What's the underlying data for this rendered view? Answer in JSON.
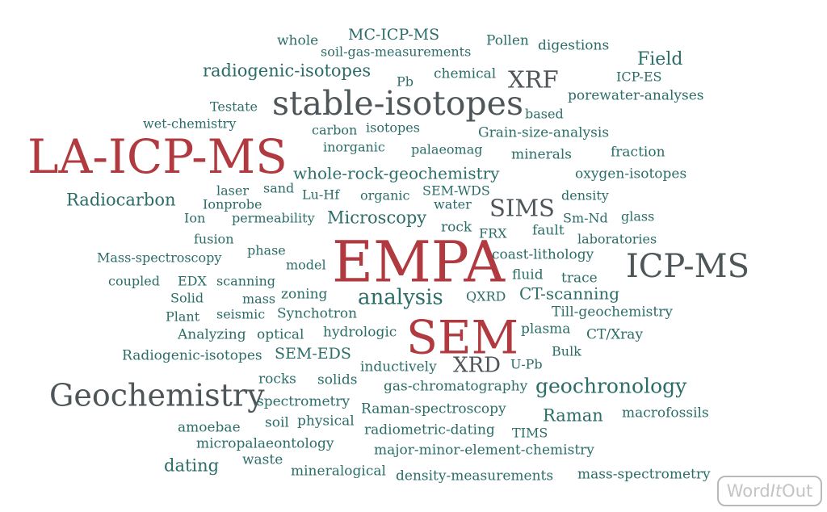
{
  "colors": {
    "teal": "#2c6d69",
    "red": "#b03a3f",
    "dark_slate": "#4e5659",
    "logo_gray": "#c4c4c4",
    "background": "#ffffff"
  },
  "word_cloud": {
    "words": [
      {
        "text": "whole"
      },
      {
        "text": "MC-ICP-MS"
      },
      {
        "text": "Pollen"
      },
      {
        "text": "digestions"
      },
      {
        "text": "soil-gas-measurements"
      },
      {
        "text": "Field"
      },
      {
        "text": "radiogenic-isotopes"
      },
      {
        "text": "Pb"
      },
      {
        "text": "chemical"
      },
      {
        "text": "XRF"
      },
      {
        "text": "ICP-ES"
      },
      {
        "text": "stable-isotopes"
      },
      {
        "text": "porewater-analyses"
      },
      {
        "text": "Testate"
      },
      {
        "text": "based"
      },
      {
        "text": "wet-chemistry"
      },
      {
        "text": "carbon"
      },
      {
        "text": "isotopes"
      },
      {
        "text": "Grain-size-analysis"
      },
      {
        "text": "LA-ICP-MS"
      },
      {
        "text": "inorganic"
      },
      {
        "text": "palaeomag"
      },
      {
        "text": "fraction"
      },
      {
        "text": "minerals"
      },
      {
        "text": "whole-rock-geochemistry"
      },
      {
        "text": "oxygen-isotopes"
      },
      {
        "text": "laser"
      },
      {
        "text": "sand"
      },
      {
        "text": "Lu-Hf"
      },
      {
        "text": "organic"
      },
      {
        "text": "SEM-WDS"
      },
      {
        "text": "density"
      },
      {
        "text": "Radiocarbon"
      },
      {
        "text": "Ionprobe"
      },
      {
        "text": "water"
      },
      {
        "text": "SIMS"
      },
      {
        "text": "Ion"
      },
      {
        "text": "permeability"
      },
      {
        "text": "Microscopy"
      },
      {
        "text": "Sm-Nd"
      },
      {
        "text": "glass"
      },
      {
        "text": "rock"
      },
      {
        "text": "fault"
      },
      {
        "text": "fusion"
      },
      {
        "text": "FRX"
      },
      {
        "text": "laboratories"
      },
      {
        "text": "phase"
      },
      {
        "text": "EMPA"
      },
      {
        "text": "Mass-spectroscopy"
      },
      {
        "text": "coast-lithology"
      },
      {
        "text": "model"
      },
      {
        "text": "ICP-MS"
      },
      {
        "text": "fluid"
      },
      {
        "text": "coupled"
      },
      {
        "text": "EDX"
      },
      {
        "text": "scanning"
      },
      {
        "text": "trace"
      },
      {
        "text": "zoning"
      },
      {
        "text": "CT-scanning"
      },
      {
        "text": "Solid"
      },
      {
        "text": "mass"
      },
      {
        "text": "analysis"
      },
      {
        "text": "QXRD"
      },
      {
        "text": "Plant"
      },
      {
        "text": "seismic"
      },
      {
        "text": "Synchotron"
      },
      {
        "text": "Till-geochemistry"
      },
      {
        "text": "plasma"
      },
      {
        "text": "Analyzing"
      },
      {
        "text": "optical"
      },
      {
        "text": "hydrologic"
      },
      {
        "text": "SEM"
      },
      {
        "text": "CT/Xray"
      },
      {
        "text": "Bulk"
      },
      {
        "text": "Radiogenic-isotopes"
      },
      {
        "text": "SEM-EDS"
      },
      {
        "text": "U-Pb"
      },
      {
        "text": "inductively"
      },
      {
        "text": "XRD"
      },
      {
        "text": "rocks"
      },
      {
        "text": "solids"
      },
      {
        "text": "geochronology"
      },
      {
        "text": "gas-chromatography"
      },
      {
        "text": "Geochemistry"
      },
      {
        "text": "spectrometry"
      },
      {
        "text": "Raman-spectroscopy"
      },
      {
        "text": "Raman"
      },
      {
        "text": "macrofossils"
      },
      {
        "text": "amoebae"
      },
      {
        "text": "soil"
      },
      {
        "text": "physical"
      },
      {
        "text": "radiometric-dating"
      },
      {
        "text": "TIMS"
      },
      {
        "text": "micropalaeontology"
      },
      {
        "text": "major-minor-element-chemistry"
      },
      {
        "text": "dating"
      },
      {
        "text": "waste"
      },
      {
        "text": "mineralogical"
      },
      {
        "text": "density-measurements"
      },
      {
        "text": "mass-spectrometry"
      }
    ]
  },
  "logo": {
    "part1": "Word",
    "part2": "It",
    "part3": "Out"
  }
}
